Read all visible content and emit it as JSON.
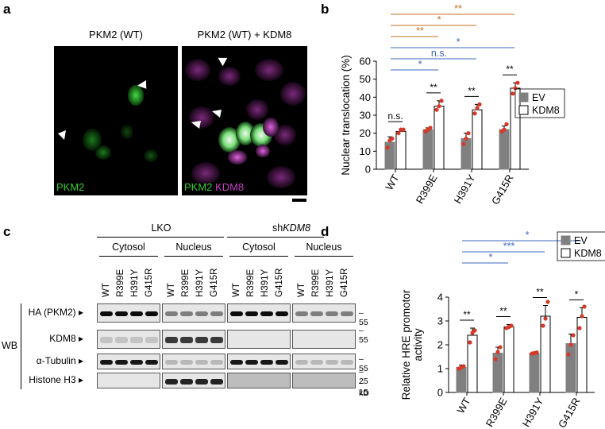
{
  "panels": {
    "a": {
      "label": "a",
      "title_left": "PKM2 (WT)",
      "title_right": "PKM2 (WT) + KDM8",
      "legend_left": "PKM2",
      "legend_right_1": "PKM2",
      "legend_right_2": "KDM8",
      "colors": {
        "pkm2": "#33cc33",
        "kdm8": "#c040c0"
      }
    },
    "b": {
      "label": "b"
    },
    "c": {
      "label": "c",
      "group_lko": "LKO",
      "group_sh_prefix": "sh",
      "group_sh_gene": "KDM8",
      "fractions": [
        "Cytosol",
        "Nucleus",
        "Cytosol",
        "Nucleus"
      ],
      "lanes": [
        "WT",
        "R399E",
        "H391Y",
        "G415R"
      ],
      "rows": [
        "HA (PKM2)",
        "KDM8",
        "α-Tubulin",
        "Histone H3"
      ],
      "wb": "WB",
      "mw": [
        "55",
        "55",
        "55",
        "25",
        "15"
      ],
      "kd": "kD"
    },
    "d": {
      "label": "d"
    }
  },
  "chart_data": [
    {
      "id": "b",
      "type": "bar",
      "categories": [
        "WT",
        "R399E",
        "H391Y",
        "G415R"
      ],
      "series": [
        {
          "name": "EV",
          "values": [
            15,
            22,
            17,
            22
          ],
          "color": "#808080",
          "points": [
            [
              12,
              16,
              17
            ],
            [
              21,
              22,
              23
            ],
            [
              14,
              17,
              20
            ],
            [
              21,
              22,
              25
            ]
          ]
        },
        {
          "name": "KDM8",
          "values": [
            21,
            35,
            33,
            45
          ],
          "color": "#ffffff",
          "points": [
            [
              20,
              22,
              22
            ],
            [
              33,
              35,
              38
            ],
            [
              31,
              34,
              36
            ],
            [
              42,
              45,
              48
            ]
          ]
        }
      ],
      "errors": [
        [
          3,
          1
        ],
        [
          1,
          3
        ],
        [
          3,
          3
        ],
        [
          2,
          3
        ]
      ],
      "ylabel": "Nuclear translocation (%)",
      "ylim": [
        0,
        60
      ],
      "yticks": [
        "0",
        "10",
        "20",
        "30",
        "40",
        "50",
        "60"
      ],
      "pair_sig": [
        "n.s.",
        "**",
        "**",
        "**"
      ],
      "comparisons": [
        {
          "from": 0,
          "to": 3,
          "label": "**",
          "color": "#c07020"
        },
        {
          "from": 0,
          "to": 2,
          "label": "*",
          "color": "#c07020"
        },
        {
          "from": 0,
          "to": 1,
          "label": "**",
          "color": "#c07020"
        },
        {
          "from": 0,
          "to": 3,
          "label": "*",
          "color": "#3a6abf"
        },
        {
          "from": 0,
          "to": 2,
          "label": "n.s.",
          "color": "#3a6abf"
        },
        {
          "from": 0,
          "to": 1,
          "label": "*",
          "color": "#3a6abf"
        }
      ],
      "legend": [
        "EV",
        "KDM8"
      ]
    },
    {
      "id": "d",
      "type": "bar",
      "categories": [
        "WT",
        "R399E",
        "H391Y",
        "G415R"
      ],
      "series": [
        {
          "name": "EV",
          "values": [
            1.05,
            1.65,
            1.65,
            2.05
          ],
          "color": "#808080",
          "points": [
            [
              1.0,
              1.05,
              1.1
            ],
            [
              1.4,
              1.7,
              1.9
            ],
            [
              1.63,
              1.65,
              1.68
            ],
            [
              1.6,
              2.0,
              2.4
            ]
          ]
        },
        {
          "name": "KDM8",
          "values": [
            2.4,
            2.75,
            3.2,
            3.15
          ],
          "color": "#ffffff",
          "points": [
            [
              2.1,
              2.5,
              2.6
            ],
            [
              2.7,
              2.75,
              2.8
            ],
            [
              2.8,
              3.1,
              3.8
            ],
            [
              2.7,
              3.2,
              3.6
            ]
          ]
        }
      ],
      "errors": [
        [
          0.1,
          0.3
        ],
        [
          0.25,
          0.1
        ],
        [
          0.05,
          0.45
        ],
        [
          0.4,
          0.4
        ]
      ],
      "ylabel": "Relative HRE promotor activity",
      "ylabel_lines": [
        "Relative HRE promotor",
        "activity"
      ],
      "ylim": [
        0,
        4
      ],
      "yticks": [
        "0",
        "1",
        "2",
        "3",
        "4"
      ],
      "pair_sig": [
        "**",
        "**",
        "**",
        "*"
      ],
      "comparisons": [
        {
          "from": 0,
          "to": 3,
          "label": "*",
          "color": "#3a6abf"
        },
        {
          "from": 0,
          "to": 2,
          "label": "***",
          "color": "#3a6abf"
        },
        {
          "from": 0,
          "to": 1,
          "label": "*",
          "color": "#3a6abf"
        }
      ],
      "legend": [
        "EV",
        "KDM8"
      ]
    }
  ]
}
